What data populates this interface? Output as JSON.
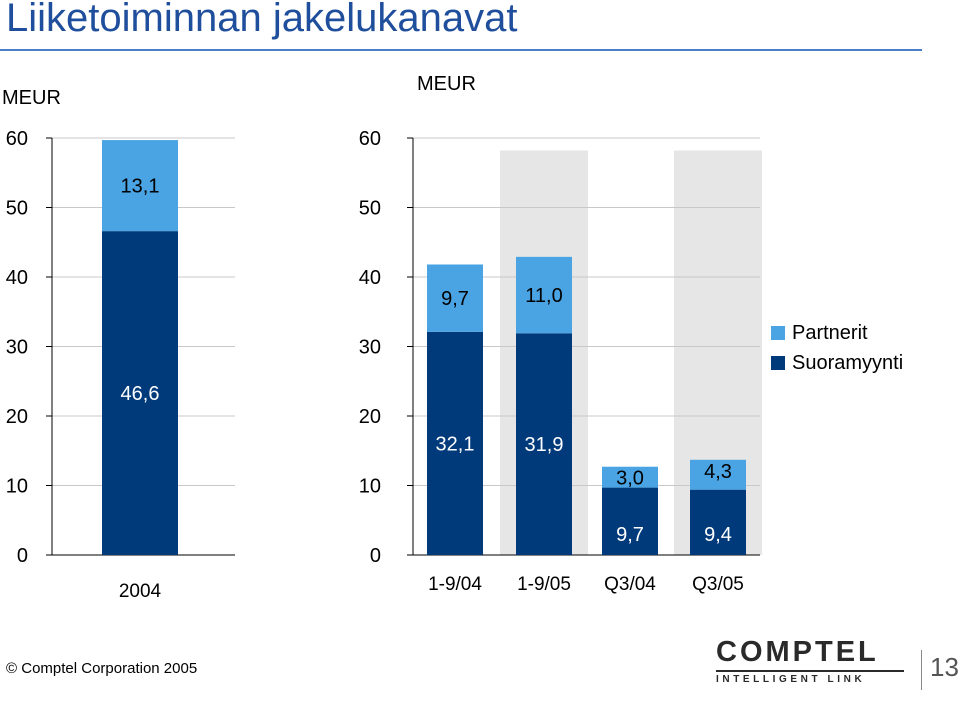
{
  "title": "Liiketoiminnan jakelukanavat",
  "footer": {
    "copyright_symbol": "©",
    "copyright_text": "Comptel Corporation 2005",
    "logo_word": "COMPTEL",
    "logo_tagline": "INTELLIGENT LINK",
    "page_number": "13"
  },
  "colors": {
    "partnerit": "#4aa3e3",
    "suoramyynti": "#003a7a",
    "shade": "#e6e6e6",
    "title": "#1f4e9c"
  },
  "legend": [
    {
      "name": "Partnerit",
      "color": "#4aa3e3"
    },
    {
      "name": "Suoramyynti",
      "color": "#003a7a"
    }
  ],
  "chart_data": [
    {
      "type": "bar",
      "stacked": true,
      "ylabel": "MEUR",
      "ylim": [
        0,
        60
      ],
      "yticks": [
        "0",
        "10",
        "20",
        "30",
        "40",
        "50",
        "60"
      ],
      "categories": [
        "2004"
      ],
      "series": [
        {
          "name": "Suoramyynti",
          "values": [
            46.6
          ],
          "labels": [
            "46,6"
          ]
        },
        {
          "name": "Partnerit",
          "values": [
            13.1
          ],
          "labels": [
            "13,1"
          ]
        }
      ]
    },
    {
      "type": "bar",
      "stacked": true,
      "ylabel": "MEUR",
      "ylim": [
        0,
        60
      ],
      "yticks": [
        "0",
        "10",
        "20",
        "30",
        "40",
        "50",
        "60"
      ],
      "categories": [
        "1-9/04",
        "1-9/05",
        "Q3/04",
        "Q3/05"
      ],
      "shaded_categories": [
        "1-9/05",
        "Q3/05"
      ],
      "legend_position": "right",
      "series": [
        {
          "name": "Suoramyynti",
          "values": [
            32.1,
            31.9,
            9.7,
            9.4
          ],
          "labels": [
            "32,1",
            "31,9",
            "9,7",
            "9,4"
          ]
        },
        {
          "name": "Partnerit",
          "values": [
            9.7,
            11.0,
            3.0,
            4.3
          ],
          "labels": [
            "9,7",
            "11,0",
            "3,0",
            "4,3"
          ]
        }
      ]
    }
  ]
}
